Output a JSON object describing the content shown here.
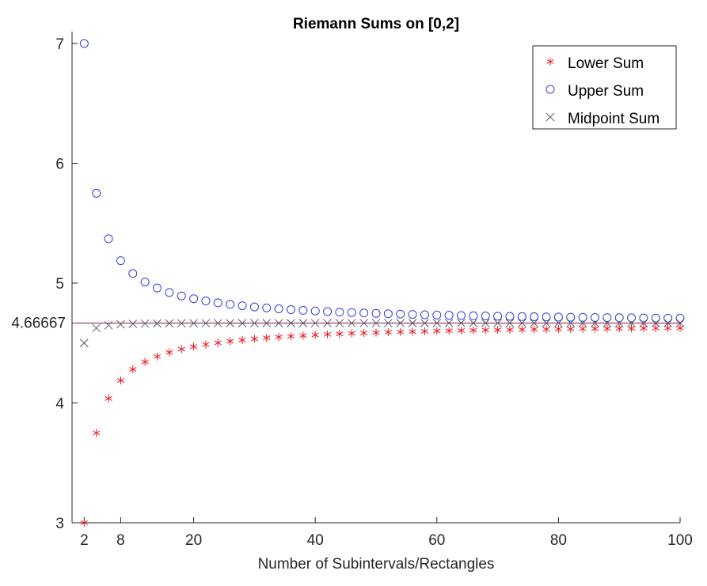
{
  "chart_data": {
    "type": "scatter",
    "title": "Riemann Sums on [0,2]",
    "xlabel": "Number of Subintervals/Rectangles",
    "ylabel": "",
    "xlim": [
      0,
      100
    ],
    "ylim": [
      3,
      7
    ],
    "xticks": [
      2,
      8,
      20,
      40,
      60,
      80,
      100
    ],
    "xtick_labels": [
      "2",
      "8",
      "20",
      "40",
      "60",
      "80",
      "100"
    ],
    "yticks": [
      3,
      4,
      5,
      6,
      7
    ],
    "ytick_labels": [
      "3",
      "4",
      "5",
      "6",
      "7"
    ],
    "reference_line": {
      "y": 4.66667,
      "label": "4.66667",
      "color": "#8b1a3a"
    },
    "grid": false,
    "legend_position": "top-right",
    "x": [
      2,
      4,
      6,
      8,
      10,
      12,
      14,
      16,
      18,
      20,
      22,
      24,
      26,
      28,
      30,
      32,
      34,
      36,
      38,
      40,
      42,
      44,
      46,
      48,
      50,
      52,
      54,
      56,
      58,
      60,
      62,
      64,
      66,
      68,
      70,
      72,
      74,
      76,
      78,
      80,
      82,
      84,
      86,
      88,
      90,
      92,
      94,
      96,
      98,
      100
    ],
    "series": [
      {
        "name": "Lower Sum",
        "marker": "asterisk",
        "color": "#e8101a",
        "values": [
          3,
          3.75,
          4.037,
          4.1875,
          4.28,
          4.3426,
          4.3878,
          4.4219,
          4.4486,
          4.47,
          4.4876,
          4.5023,
          4.5148,
          4.5255,
          4.5348,
          4.543,
          4.5502,
          4.5566,
          4.5623,
          4.5675,
          4.5722,
          4.5764,
          4.5803,
          4.5839,
          4.5872,
          4.5902,
          4.593,
          4.5956,
          4.598,
          4.6003,
          4.6024,
          4.6044,
          4.6062,
          4.608,
          4.6096,
          4.6111,
          4.6126,
          4.614,
          4.6153,
          4.6165,
          4.6177,
          4.6188,
          4.6199,
          4.6209,
          4.6219,
          4.6228,
          4.6237,
          4.6246,
          4.6254,
          4.6262
        ]
      },
      {
        "name": "Upper Sum",
        "marker": "circle",
        "color": "#3a3ad8",
        "values": [
          7,
          5.75,
          5.3704,
          5.1875,
          5.08,
          5.0093,
          4.9592,
          4.9219,
          4.893,
          4.87,
          4.8512,
          4.8356,
          4.8225,
          4.8112,
          4.8015,
          4.793,
          4.7855,
          4.7788,
          4.7729,
          4.7675,
          4.7627,
          4.7582,
          4.7542,
          4.7506,
          4.7472,
          4.7441,
          4.7412,
          4.7385,
          4.736,
          4.7337,
          4.7315,
          4.7295,
          4.7275,
          4.7257,
          4.724,
          4.7224,
          4.7209,
          4.7194,
          4.7181,
          4.7168,
          4.7155,
          4.7143,
          4.7132,
          4.7121,
          4.7111,
          4.7101,
          4.7091,
          4.7082,
          4.7074,
          4.7065
        ]
      },
      {
        "name": "Midpoint Sum",
        "marker": "x",
        "color": "#5a5a6e",
        "values": [
          4.5,
          4.625,
          4.6481,
          4.6563,
          4.66,
          4.662,
          4.6633,
          4.6641,
          4.6646,
          4.665,
          4.6653,
          4.6655,
          4.6657,
          4.6658,
          4.6659,
          4.666,
          4.666,
          4.6661,
          4.6661,
          4.6662,
          4.6662,
          4.6662,
          4.6663,
          4.6663,
          4.6663,
          4.6663,
          4.6664,
          4.6664,
          4.6664,
          4.6664,
          4.6664,
          4.6664,
          4.6664,
          4.6664,
          4.6665,
          4.6665,
          4.6665,
          4.6665,
          4.6665,
          4.6665,
          4.6665,
          4.6665,
          4.6665,
          4.6665,
          4.6665,
          4.6665,
          4.6665,
          4.6665,
          4.6665,
          4.6665
        ]
      }
    ]
  }
}
